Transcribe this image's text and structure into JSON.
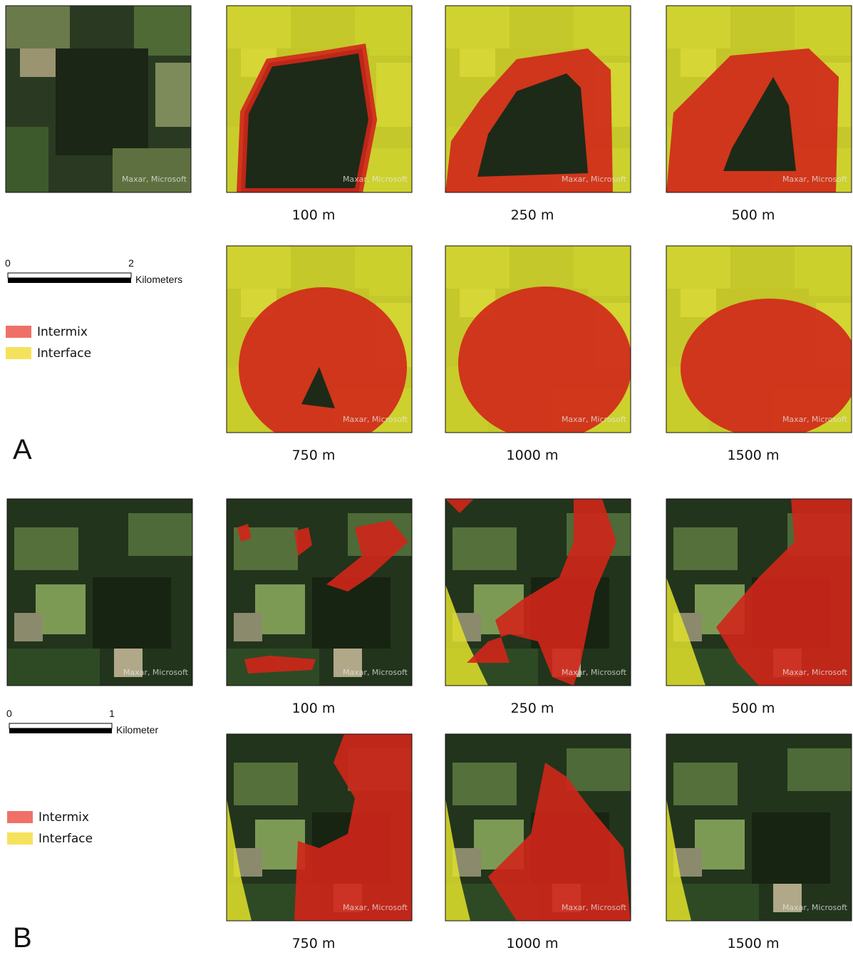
{
  "sections": [
    {
      "letter": "A",
      "scale_bar": {
        "ticks": [
          0,
          2
        ],
        "unit": "Kilometers"
      },
      "legend": [
        "Intermix",
        "Interface"
      ],
      "base_attribution": "Maxar, Microsoft",
      "panels": [
        {
          "label": "100 m",
          "attribution": "Maxar, Microsoft"
        },
        {
          "label": "250 m",
          "attribution": "Maxar, Microsoft"
        },
        {
          "label": "500 m",
          "attribution": "Maxar, Microsoft"
        },
        {
          "label": "750 m",
          "attribution": "Maxar, Microsoft"
        },
        {
          "label": "1000 m",
          "attribution": "Maxar, Microsoft"
        },
        {
          "label": "1500 m",
          "attribution": "Maxar, Microsoft"
        }
      ]
    },
    {
      "letter": "B",
      "scale_bar": {
        "ticks": [
          0,
          1
        ],
        "unit": "Kilometer"
      },
      "legend": [
        "Intermix",
        "Interface"
      ],
      "base_attribution": "Maxar, Microsoft",
      "panels": [
        {
          "label": "100 m",
          "attribution": "Maxar, Microsoft"
        },
        {
          "label": "250 m",
          "attribution": "Maxar, Microsoft"
        },
        {
          "label": "500 m",
          "attribution": "Maxar, Microsoft"
        },
        {
          "label": "750 m",
          "attribution": "Maxar, Microsoft"
        },
        {
          "label": "1000 m",
          "attribution": "Maxar, Microsoft"
        },
        {
          "label": "1500 m",
          "attribution": "Maxar, Microsoft"
        }
      ]
    }
  ]
}
